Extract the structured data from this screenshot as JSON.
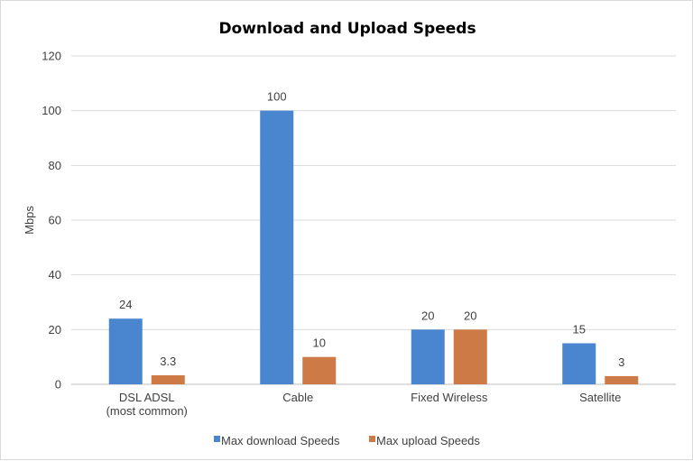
{
  "chart_data": {
    "type": "bar",
    "title": "Download and Upload Speeds",
    "xlabel": "",
    "ylabel": "Mbps",
    "ylim": [
      0,
      120
    ],
    "yticks": [
      0,
      20,
      40,
      60,
      80,
      100,
      120
    ],
    "grid": true,
    "legend": "bottom",
    "categories": [
      [
        "DSL ADSL",
        "(most common)"
      ],
      [
        "Cable"
      ],
      [
        "Fixed Wireless"
      ],
      [
        "Satellite"
      ]
    ],
    "series": [
      {
        "name": "Max download Speeds",
        "color": "#4a86d0",
        "values": [
          24,
          100,
          20,
          15
        ],
        "labels": [
          "24",
          "100",
          "20",
          "15"
        ]
      },
      {
        "name": "Max upload Speeds",
        "color": "#cd7a46",
        "values": [
          3.3,
          10,
          20,
          3
        ],
        "labels": [
          "3.3",
          "10",
          "20",
          "3"
        ]
      }
    ]
  }
}
